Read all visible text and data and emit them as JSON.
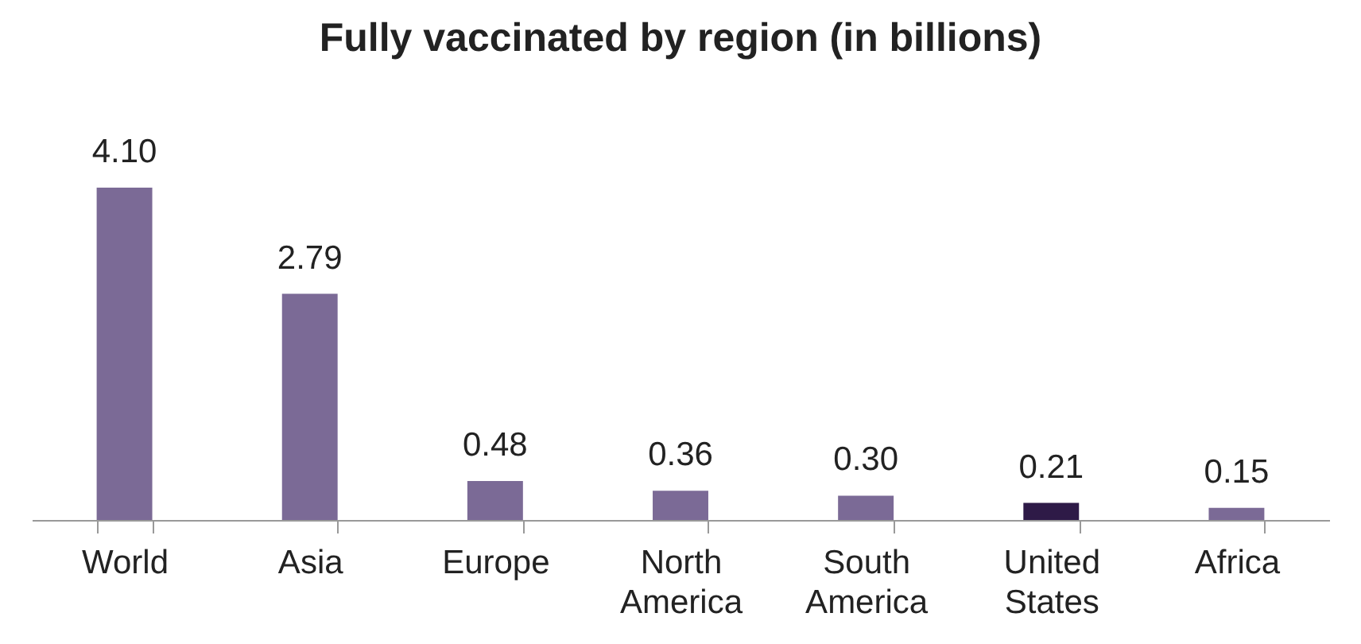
{
  "chart_data": {
    "type": "bar",
    "title": "Fully vaccinated by region (in billions)",
    "categories": [
      "World",
      "Asia",
      "Europe",
      "North America",
      "South America",
      "United States",
      "Africa"
    ],
    "values": [
      4.1,
      2.79,
      0.48,
      0.36,
      0.3,
      0.21,
      0.15
    ],
    "value_labels": [
      "4.10",
      "2.79",
      "0.48",
      "0.36",
      "0.30",
      "0.21",
      "0.15"
    ],
    "colors": [
      "#7b6a96",
      "#7b6a96",
      "#7b6a96",
      "#7b6a96",
      "#7b6a96",
      "#2e1a47",
      "#7b6a96"
    ]
  }
}
